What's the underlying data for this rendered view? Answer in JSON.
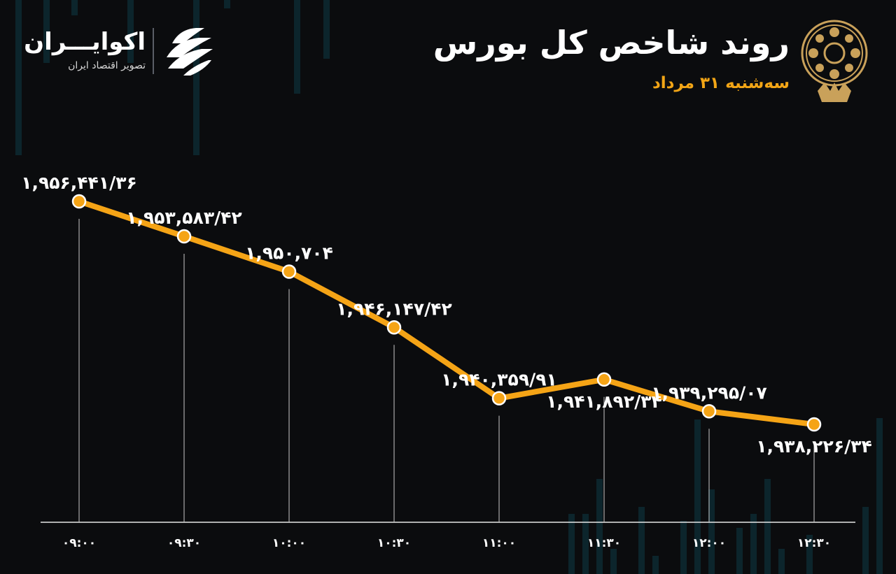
{
  "header": {
    "title": "روند شاخص کل بورس",
    "subtitle": "سه‌شنبه ۳۱ مرداد"
  },
  "brand": {
    "name": "اکوایـــران",
    "tagline": "تصویر اقتصاد ایران"
  },
  "colors": {
    "background": "#0b0c0e",
    "line": "#f5a416",
    "marker_fill": "#f5a416",
    "marker_stroke": "#ffffff",
    "text": "#ffffff",
    "accent": "#f2a516",
    "background_bars": "#0f3a46"
  },
  "icons": {
    "seal": "stock-exchange-seal-icon",
    "brand": "ecoiran-logo-icon"
  },
  "chart_data": {
    "type": "line",
    "x": [
      "09:00",
      "09:30",
      "10:00",
      "10:30",
      "11:00",
      "11:30",
      "12:00",
      "12:30"
    ],
    "x_tick_labels": [
      "۰۹:۰۰",
      "۰۹:۳۰",
      "۱۰:۰۰",
      "۱۰:۳۰",
      "۱۱:۰۰",
      "۱۱:۳۰",
      "۱۲:۰۰",
      "۱۲:۳۰"
    ],
    "series": [
      {
        "values": [
          1956441.36,
          1953583.42,
          1950704,
          1946147.42,
          1940359.91,
          1941892.34,
          1939295.07,
          1938226.34
        ],
        "labels": [
          "۱,۹۵۶,۴۴۱/۳۶",
          "۱,۹۵۳,۵۸۳/۴۲",
          "۱,۹۵۰,۷۰۴",
          "۱,۹۴۶,۱۴۷/۴۲",
          "۱,۹۴۰,۳۵۹/۹۱",
          "۱,۹۴۱,۸۹۲/۳۴",
          "۱,۹۳۹,۲۹۵/۰۷",
          "۱,۹۳۸,۲۲۶/۳۴"
        ]
      }
    ],
    "label_positions": [
      "above",
      "above",
      "above",
      "above",
      "above",
      "below",
      "above",
      "below"
    ],
    "grid": false,
    "legend": "none"
  }
}
